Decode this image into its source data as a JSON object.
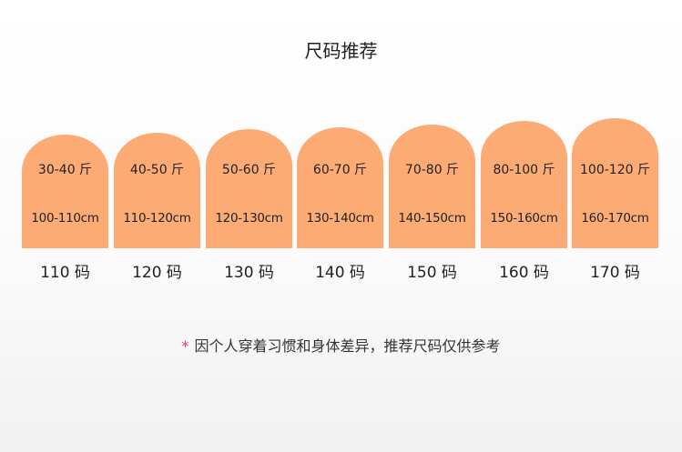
{
  "title": "尺码推荐",
  "color_card": "#fcab74",
  "sizes": [
    {
      "weight": "30-40 斤",
      "height": "100-110cm",
      "size": "110 码"
    },
    {
      "weight": "40-50 斤",
      "height": "110-120cm",
      "size": "120 码"
    },
    {
      "weight": "50-60 斤",
      "height": "120-130cm",
      "size": "130 码"
    },
    {
      "weight": "60-70 斤",
      "height": "130-140cm",
      "size": "140 码"
    },
    {
      "weight": "70-80 斤",
      "height": "140-150cm",
      "size": "150 码"
    },
    {
      "weight": "80-100 斤",
      "height": "150-160cm",
      "size": "160 码"
    },
    {
      "weight": "100-120 斤",
      "height": "160-170cm",
      "size": "170 码"
    }
  ],
  "note": {
    "star": "*",
    "text": "因个人穿着习惯和身体差异，推荐尺码仅供参考"
  }
}
